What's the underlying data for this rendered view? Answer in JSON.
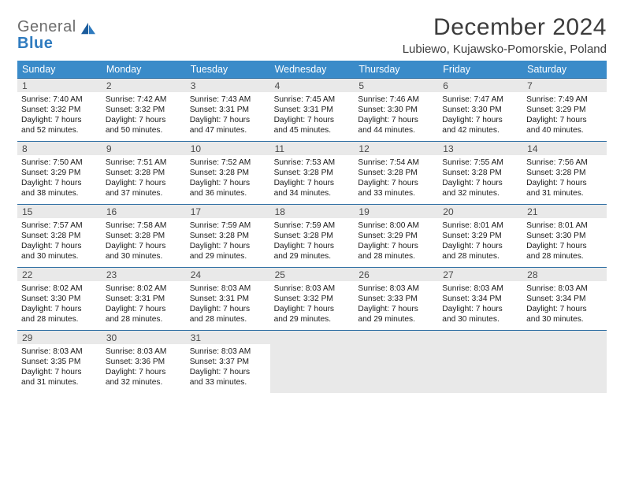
{
  "logo": {
    "general": "General",
    "blue": "Blue"
  },
  "title": "December 2024",
  "subtitle": "Lubiewo, Kujawsko-Pomorskie, Poland",
  "colors": {
    "header_bg": "#3a8bc9",
    "header_text": "#ffffff",
    "daynum_bg": "#e9e9e9",
    "daynum_border": "#2f6fa3",
    "empty_bg": "#e9e9e9",
    "logo_gray": "#6d6d6d",
    "logo_blue": "#2f7bbf",
    "text": "#1a1a1a"
  },
  "layout": {
    "columns": 7,
    "rows": 5,
    "title_fontsize": 30,
    "subtitle_fontsize": 15,
    "dow_fontsize": 12.5,
    "daynum_fontsize": 12,
    "detail_fontsize": 10.2
  },
  "dow": [
    "Sunday",
    "Monday",
    "Tuesday",
    "Wednesday",
    "Thursday",
    "Friday",
    "Saturday"
  ],
  "weeks": [
    [
      {
        "n": "1",
        "sr": "Sunrise: 7:40 AM",
        "ss": "Sunset: 3:32 PM",
        "d1": "Daylight: 7 hours",
        "d2": "and 52 minutes."
      },
      {
        "n": "2",
        "sr": "Sunrise: 7:42 AM",
        "ss": "Sunset: 3:32 PM",
        "d1": "Daylight: 7 hours",
        "d2": "and 50 minutes."
      },
      {
        "n": "3",
        "sr": "Sunrise: 7:43 AM",
        "ss": "Sunset: 3:31 PM",
        "d1": "Daylight: 7 hours",
        "d2": "and 47 minutes."
      },
      {
        "n": "4",
        "sr": "Sunrise: 7:45 AM",
        "ss": "Sunset: 3:31 PM",
        "d1": "Daylight: 7 hours",
        "d2": "and 45 minutes."
      },
      {
        "n": "5",
        "sr": "Sunrise: 7:46 AM",
        "ss": "Sunset: 3:30 PM",
        "d1": "Daylight: 7 hours",
        "d2": "and 44 minutes."
      },
      {
        "n": "6",
        "sr": "Sunrise: 7:47 AM",
        "ss": "Sunset: 3:30 PM",
        "d1": "Daylight: 7 hours",
        "d2": "and 42 minutes."
      },
      {
        "n": "7",
        "sr": "Sunrise: 7:49 AM",
        "ss": "Sunset: 3:29 PM",
        "d1": "Daylight: 7 hours",
        "d2": "and 40 minutes."
      }
    ],
    [
      {
        "n": "8",
        "sr": "Sunrise: 7:50 AM",
        "ss": "Sunset: 3:29 PM",
        "d1": "Daylight: 7 hours",
        "d2": "and 38 minutes."
      },
      {
        "n": "9",
        "sr": "Sunrise: 7:51 AM",
        "ss": "Sunset: 3:28 PM",
        "d1": "Daylight: 7 hours",
        "d2": "and 37 minutes."
      },
      {
        "n": "10",
        "sr": "Sunrise: 7:52 AM",
        "ss": "Sunset: 3:28 PM",
        "d1": "Daylight: 7 hours",
        "d2": "and 36 minutes."
      },
      {
        "n": "11",
        "sr": "Sunrise: 7:53 AM",
        "ss": "Sunset: 3:28 PM",
        "d1": "Daylight: 7 hours",
        "d2": "and 34 minutes."
      },
      {
        "n": "12",
        "sr": "Sunrise: 7:54 AM",
        "ss": "Sunset: 3:28 PM",
        "d1": "Daylight: 7 hours",
        "d2": "and 33 minutes."
      },
      {
        "n": "13",
        "sr": "Sunrise: 7:55 AM",
        "ss": "Sunset: 3:28 PM",
        "d1": "Daylight: 7 hours",
        "d2": "and 32 minutes."
      },
      {
        "n": "14",
        "sr": "Sunrise: 7:56 AM",
        "ss": "Sunset: 3:28 PM",
        "d1": "Daylight: 7 hours",
        "d2": "and 31 minutes."
      }
    ],
    [
      {
        "n": "15",
        "sr": "Sunrise: 7:57 AM",
        "ss": "Sunset: 3:28 PM",
        "d1": "Daylight: 7 hours",
        "d2": "and 30 minutes."
      },
      {
        "n": "16",
        "sr": "Sunrise: 7:58 AM",
        "ss": "Sunset: 3:28 PM",
        "d1": "Daylight: 7 hours",
        "d2": "and 30 minutes."
      },
      {
        "n": "17",
        "sr": "Sunrise: 7:59 AM",
        "ss": "Sunset: 3:28 PM",
        "d1": "Daylight: 7 hours",
        "d2": "and 29 minutes."
      },
      {
        "n": "18",
        "sr": "Sunrise: 7:59 AM",
        "ss": "Sunset: 3:28 PM",
        "d1": "Daylight: 7 hours",
        "d2": "and 29 minutes."
      },
      {
        "n": "19",
        "sr": "Sunrise: 8:00 AM",
        "ss": "Sunset: 3:29 PM",
        "d1": "Daylight: 7 hours",
        "d2": "and 28 minutes."
      },
      {
        "n": "20",
        "sr": "Sunrise: 8:01 AM",
        "ss": "Sunset: 3:29 PM",
        "d1": "Daylight: 7 hours",
        "d2": "and 28 minutes."
      },
      {
        "n": "21",
        "sr": "Sunrise: 8:01 AM",
        "ss": "Sunset: 3:30 PM",
        "d1": "Daylight: 7 hours",
        "d2": "and 28 minutes."
      }
    ],
    [
      {
        "n": "22",
        "sr": "Sunrise: 8:02 AM",
        "ss": "Sunset: 3:30 PM",
        "d1": "Daylight: 7 hours",
        "d2": "and 28 minutes."
      },
      {
        "n": "23",
        "sr": "Sunrise: 8:02 AM",
        "ss": "Sunset: 3:31 PM",
        "d1": "Daylight: 7 hours",
        "d2": "and 28 minutes."
      },
      {
        "n": "24",
        "sr": "Sunrise: 8:03 AM",
        "ss": "Sunset: 3:31 PM",
        "d1": "Daylight: 7 hours",
        "d2": "and 28 minutes."
      },
      {
        "n": "25",
        "sr": "Sunrise: 8:03 AM",
        "ss": "Sunset: 3:32 PM",
        "d1": "Daylight: 7 hours",
        "d2": "and 29 minutes."
      },
      {
        "n": "26",
        "sr": "Sunrise: 8:03 AM",
        "ss": "Sunset: 3:33 PM",
        "d1": "Daylight: 7 hours",
        "d2": "and 29 minutes."
      },
      {
        "n": "27",
        "sr": "Sunrise: 8:03 AM",
        "ss": "Sunset: 3:34 PM",
        "d1": "Daylight: 7 hours",
        "d2": "and 30 minutes."
      },
      {
        "n": "28",
        "sr": "Sunrise: 8:03 AM",
        "ss": "Sunset: 3:34 PM",
        "d1": "Daylight: 7 hours",
        "d2": "and 30 minutes."
      }
    ],
    [
      {
        "n": "29",
        "sr": "Sunrise: 8:03 AM",
        "ss": "Sunset: 3:35 PM",
        "d1": "Daylight: 7 hours",
        "d2": "and 31 minutes."
      },
      {
        "n": "30",
        "sr": "Sunrise: 8:03 AM",
        "ss": "Sunset: 3:36 PM",
        "d1": "Daylight: 7 hours",
        "d2": "and 32 minutes."
      },
      {
        "n": "31",
        "sr": "Sunrise: 8:03 AM",
        "ss": "Sunset: 3:37 PM",
        "d1": "Daylight: 7 hours",
        "d2": "and 33 minutes."
      },
      null,
      null,
      null,
      null
    ]
  ]
}
